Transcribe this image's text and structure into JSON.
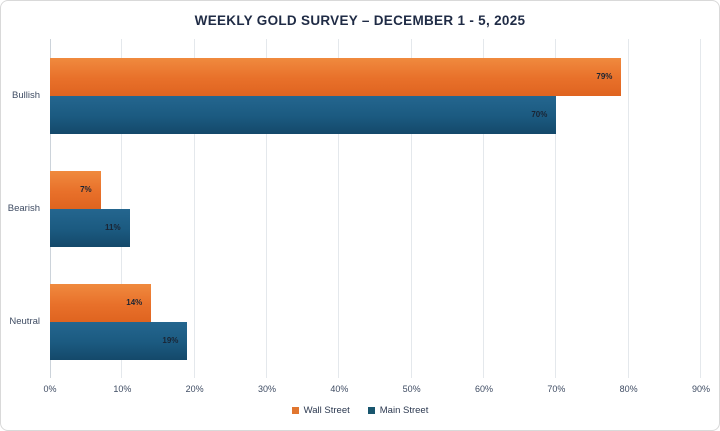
{
  "title": "WEEKLY GOLD SURVEY – DECEMBER 1 - 5, 2025",
  "colors": {
    "title_text": "#1f2b45",
    "axis_text": "#3f4c63",
    "gridline": "#e4e8ec",
    "wall_street_orange": "#e8702a",
    "main_street_blue": "#1b5a80",
    "legend_orange_swatch": "#e1762f",
    "legend_blue_swatch": "#19566e"
  },
  "chart_data": {
    "type": "bar",
    "orientation": "horizontal",
    "title": "WEEKLY GOLD SURVEY – DECEMBER 1 - 5, 2025",
    "categories": [
      "Bullish",
      "Bearish",
      "Neutral"
    ],
    "series": [
      {
        "name": "Wall Street",
        "color": "#e8702a",
        "values": [
          79,
          7,
          14
        ],
        "labels": [
          "79%",
          "7%",
          "14%"
        ]
      },
      {
        "name": "Main Street",
        "color": "#1b5a80",
        "values": [
          70,
          11,
          19
        ],
        "labels": [
          "70%",
          "11%",
          "19%"
        ]
      }
    ],
    "xlabel": "",
    "ylabel": "",
    "xlim": [
      0,
      90
    ],
    "xticks": [
      "0%",
      "10%",
      "20%",
      "30%",
      "40%",
      "50%",
      "60%",
      "70%",
      "80%",
      "90%"
    ],
    "grid": "vertical",
    "legend_position": "bottom-center",
    "legend": [
      "Wall Street",
      "Main Street"
    ]
  }
}
